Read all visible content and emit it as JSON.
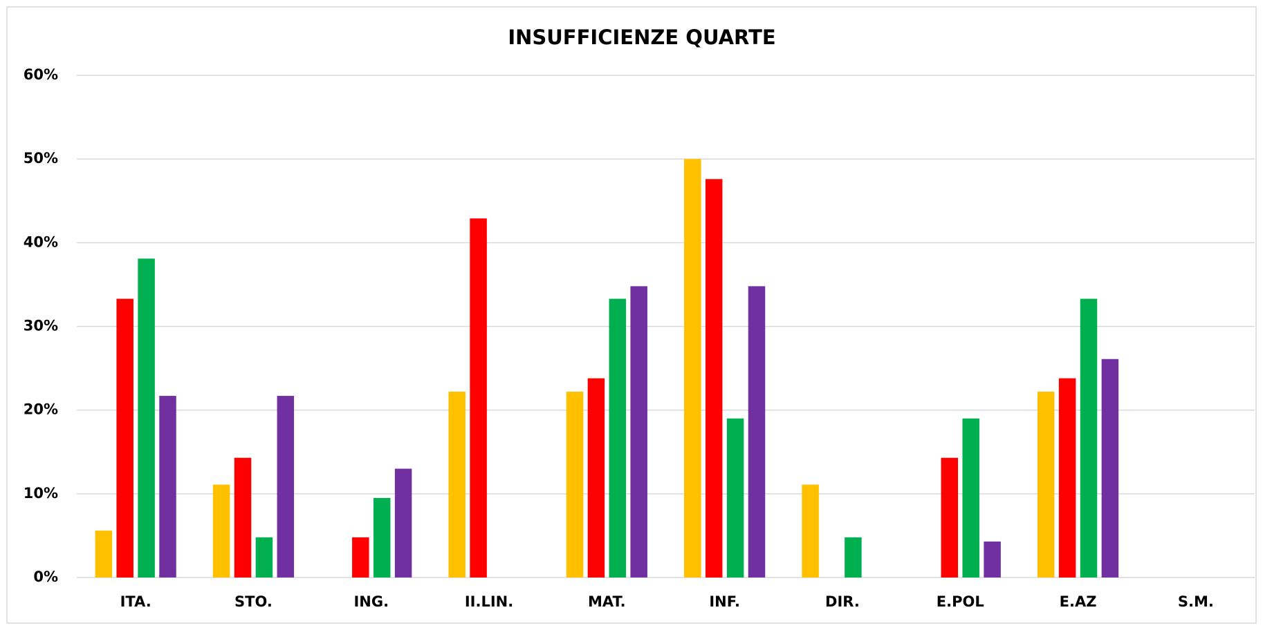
{
  "chart_data": {
    "type": "bar",
    "title": "INSUFFICIENZE QUARTE",
    "categories": [
      "ITA.",
      "STO.",
      "ING.",
      "II.LIN.",
      "MAT.",
      "INF.",
      "DIR.",
      "E.POL",
      "E.AZ",
      "S.M."
    ],
    "series": [
      {
        "color": "#ffc000",
        "values": [
          5.6,
          11.1,
          0,
          22.2,
          22.2,
          50,
          11.1,
          0,
          22.2,
          0
        ]
      },
      {
        "color": "#ff0000",
        "values": [
          33.3,
          14.3,
          4.8,
          42.9,
          23.8,
          47.6,
          0,
          14.3,
          23.8,
          0
        ]
      },
      {
        "color": "#00b050",
        "values": [
          38.1,
          4.8,
          9.5,
          0,
          33.3,
          19.0,
          4.8,
          19.0,
          33.3,
          0
        ]
      },
      {
        "color": "#7030a0",
        "values": [
          21.7,
          21.7,
          13.0,
          0,
          34.8,
          34.8,
          0,
          4.3,
          26.1,
          0
        ]
      }
    ],
    "ylim": [
      0,
      60
    ],
    "yticks": [
      {
        "value": 0,
        "label": "0%"
      },
      {
        "value": 10,
        "label": "10%"
      },
      {
        "value": 20,
        "label": "20%"
      },
      {
        "value": 30,
        "label": "30%"
      },
      {
        "value": 40,
        "label": "40%"
      },
      {
        "value": 50,
        "label": "50%"
      },
      {
        "value": 60,
        "label": "60%"
      }
    ],
    "grid": true
  }
}
